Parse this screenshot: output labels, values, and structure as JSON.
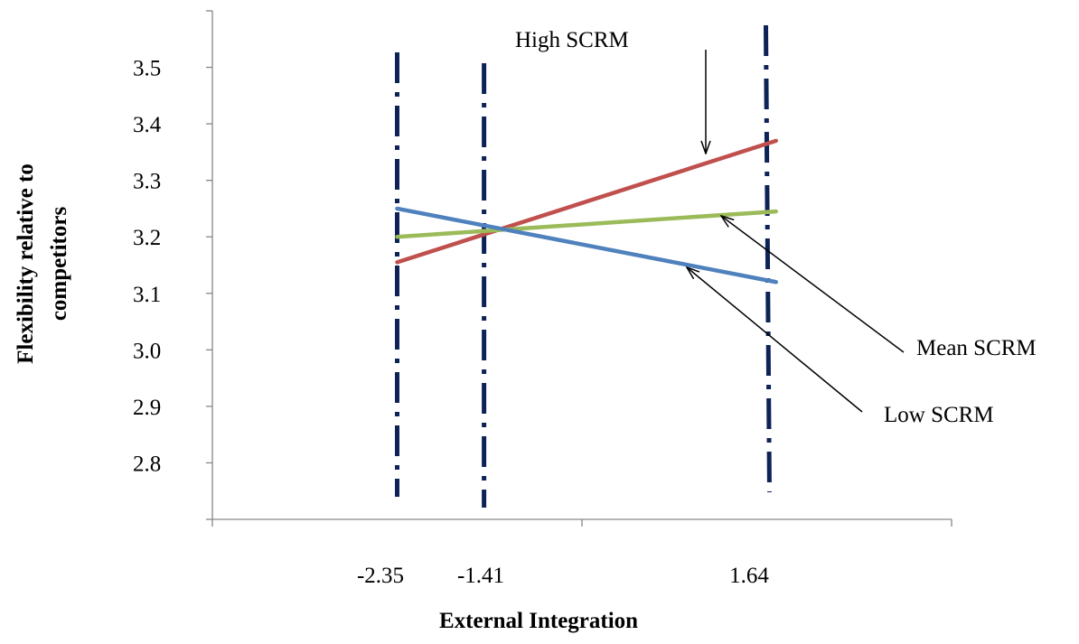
{
  "chart_data": {
    "type": "line",
    "xlabel": "External Integration",
    "ylabel_lines": [
      "Flexibility relative to",
      "competitors"
    ],
    "x_tick_labels": [
      "-2.35",
      "-1.41",
      "1.64"
    ],
    "y_ticks": [
      2.8,
      2.9,
      3.0,
      3.1,
      3.2,
      3.3,
      3.4,
      3.5
    ],
    "y_tick_labels": [
      "2.8",
      "2.9",
      "3.0",
      "3.1",
      "3.2",
      "3.3",
      "3.4",
      "3.5"
    ],
    "xlim": [
      -4.35,
      3.65
    ],
    "ylim": [
      2.7,
      3.6
    ],
    "grid": false,
    "series": [
      {
        "name": "High SCRM",
        "color": "#c0504d",
        "x": [
          -2.35,
          1.75
        ],
        "y": [
          3.155,
          3.37
        ]
      },
      {
        "name": "Mean SCRM",
        "color": "#9bbb59",
        "x": [
          -2.35,
          1.75
        ],
        "y": [
          3.2,
          3.245
        ]
      },
      {
        "name": "Low SCRM",
        "color": "#4f81bd",
        "x": [
          -2.35,
          1.75
        ],
        "y": [
          3.25,
          3.12
        ]
      }
    ],
    "reference_lines": [
      {
        "x": -2.35,
        "color": "#0d2256"
      },
      {
        "x": -1.41,
        "color": "#0d2256"
      },
      {
        "x": 1.64,
        "color": "#0d2256"
      }
    ],
    "annotations": [
      {
        "text": "High SCRM",
        "target_series": "High SCRM"
      },
      {
        "text": "Mean SCRM",
        "target_series": "Mean SCRM"
      },
      {
        "text": "Low SCRM",
        "target_series": "Low SCRM"
      }
    ]
  }
}
